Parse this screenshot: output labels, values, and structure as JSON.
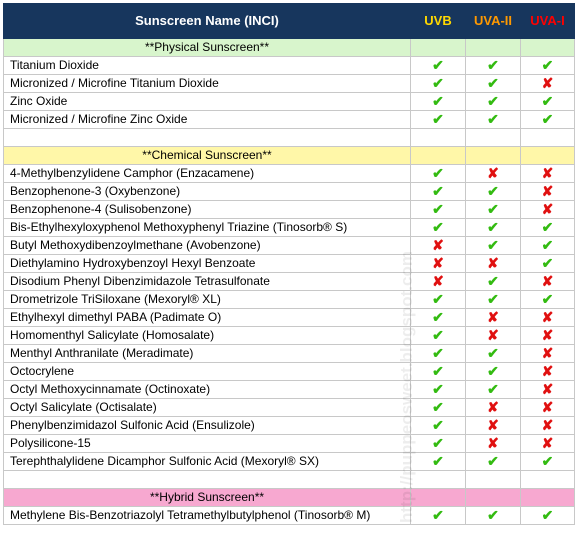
{
  "header": {
    "name": "Sunscreen Name (INCI)",
    "uvb": "UVB",
    "uva2": "UVA-II",
    "uva1": "UVA-I"
  },
  "colors": {
    "header_bg": "#17365d",
    "uvb": "#ffd800",
    "uva2": "#ff9900",
    "uva1": "#ff0000",
    "check": "#33bb11",
    "cross": "#e01010",
    "physical_bg": "#d8f5cc",
    "chemical_bg": "#fff7a8",
    "hybrid_bg": "#f7a8d0"
  },
  "marks": {
    "yes": "✔",
    "no": "✘"
  },
  "watermark": "http://puppeosweet.blogspot.com",
  "sections": [
    {
      "title": "**Physical Sunscreen**",
      "kind": "physical",
      "rows": [
        {
          "name": "Titanium Dioxide",
          "uvb": true,
          "uva2": true,
          "uva1": true
        },
        {
          "name": "Micronized / Microfine Titanium Dioxide",
          "uvb": true,
          "uva2": true,
          "uva1": false
        },
        {
          "name": "Zinc Oxide",
          "uvb": true,
          "uva2": true,
          "uva1": true
        },
        {
          "name": "Micronized / Microfine Zinc Oxide",
          "uvb": true,
          "uva2": true,
          "uva1": true
        }
      ]
    },
    {
      "title": "**Chemical Sunscreen**",
      "kind": "chemical",
      "rows": [
        {
          "name": "4-Methylbenzylidene Camphor (Enzacamene)",
          "uvb": true,
          "uva2": false,
          "uva1": false
        },
        {
          "name": "Benzophenone-3 (Oxybenzone)",
          "uvb": true,
          "uva2": true,
          "uva1": false
        },
        {
          "name": "Benzophenone-4 (Sulisobenzone)",
          "uvb": true,
          "uva2": true,
          "uva1": false
        },
        {
          "name": "Bis-Ethylhexyloxyphenol Methoxyphenyl Triazine (Tinosorb® S)",
          "uvb": true,
          "uva2": true,
          "uva1": true
        },
        {
          "name": "Butyl Methoxydibenzoylmethane (Avobenzone)",
          "uvb": false,
          "uva2": true,
          "uva1": true
        },
        {
          "name": "Diethylamino Hydroxybenzoyl Hexyl Benzoate",
          "uvb": false,
          "uva2": false,
          "uva1": true
        },
        {
          "name": "Disodium Phenyl Dibenzimidazole Tetrasulfonate",
          "uvb": false,
          "uva2": true,
          "uva1": false
        },
        {
          "name": "Drometrizole TriSiloxane (Mexoryl® XL)",
          "uvb": true,
          "uva2": true,
          "uva1": true
        },
        {
          "name": "Ethylhexyl dimethyl PABA (Padimate O)",
          "uvb": true,
          "uva2": false,
          "uva1": false
        },
        {
          "name": "Homomenthyl Salicylate (Homosalate)",
          "uvb": true,
          "uva2": false,
          "uva1": false
        },
        {
          "name": "Menthyl Anthranilate (Meradimate)",
          "uvb": true,
          "uva2": true,
          "uva1": false
        },
        {
          "name": "Octocrylene",
          "uvb": true,
          "uva2": true,
          "uva1": false
        },
        {
          "name": "Octyl Methoxycinnamate (Octinoxate)",
          "uvb": true,
          "uva2": true,
          "uva1": false
        },
        {
          "name": "Octyl Salicylate (Octisalate)",
          "uvb": true,
          "uva2": false,
          "uva1": false
        },
        {
          "name": "Phenylbenzimidazol Sulfonic Acid (Ensulizole)",
          "uvb": true,
          "uva2": false,
          "uva1": false
        },
        {
          "name": "Polysilicone-15",
          "uvb": true,
          "uva2": false,
          "uva1": false
        },
        {
          "name": "Terephthalylidene Dicamphor Sulfonic Acid (Mexoryl® SX)",
          "uvb": true,
          "uva2": true,
          "uva1": true
        }
      ]
    },
    {
      "title": "**Hybrid Sunscreen**",
      "kind": "hybrid",
      "rows": [
        {
          "name": "Methylene Bis-Benzotriazolyl Tetramethylbutylphenol (Tinosorb® M)",
          "uvb": true,
          "uva2": true,
          "uva1": true
        }
      ]
    }
  ]
}
